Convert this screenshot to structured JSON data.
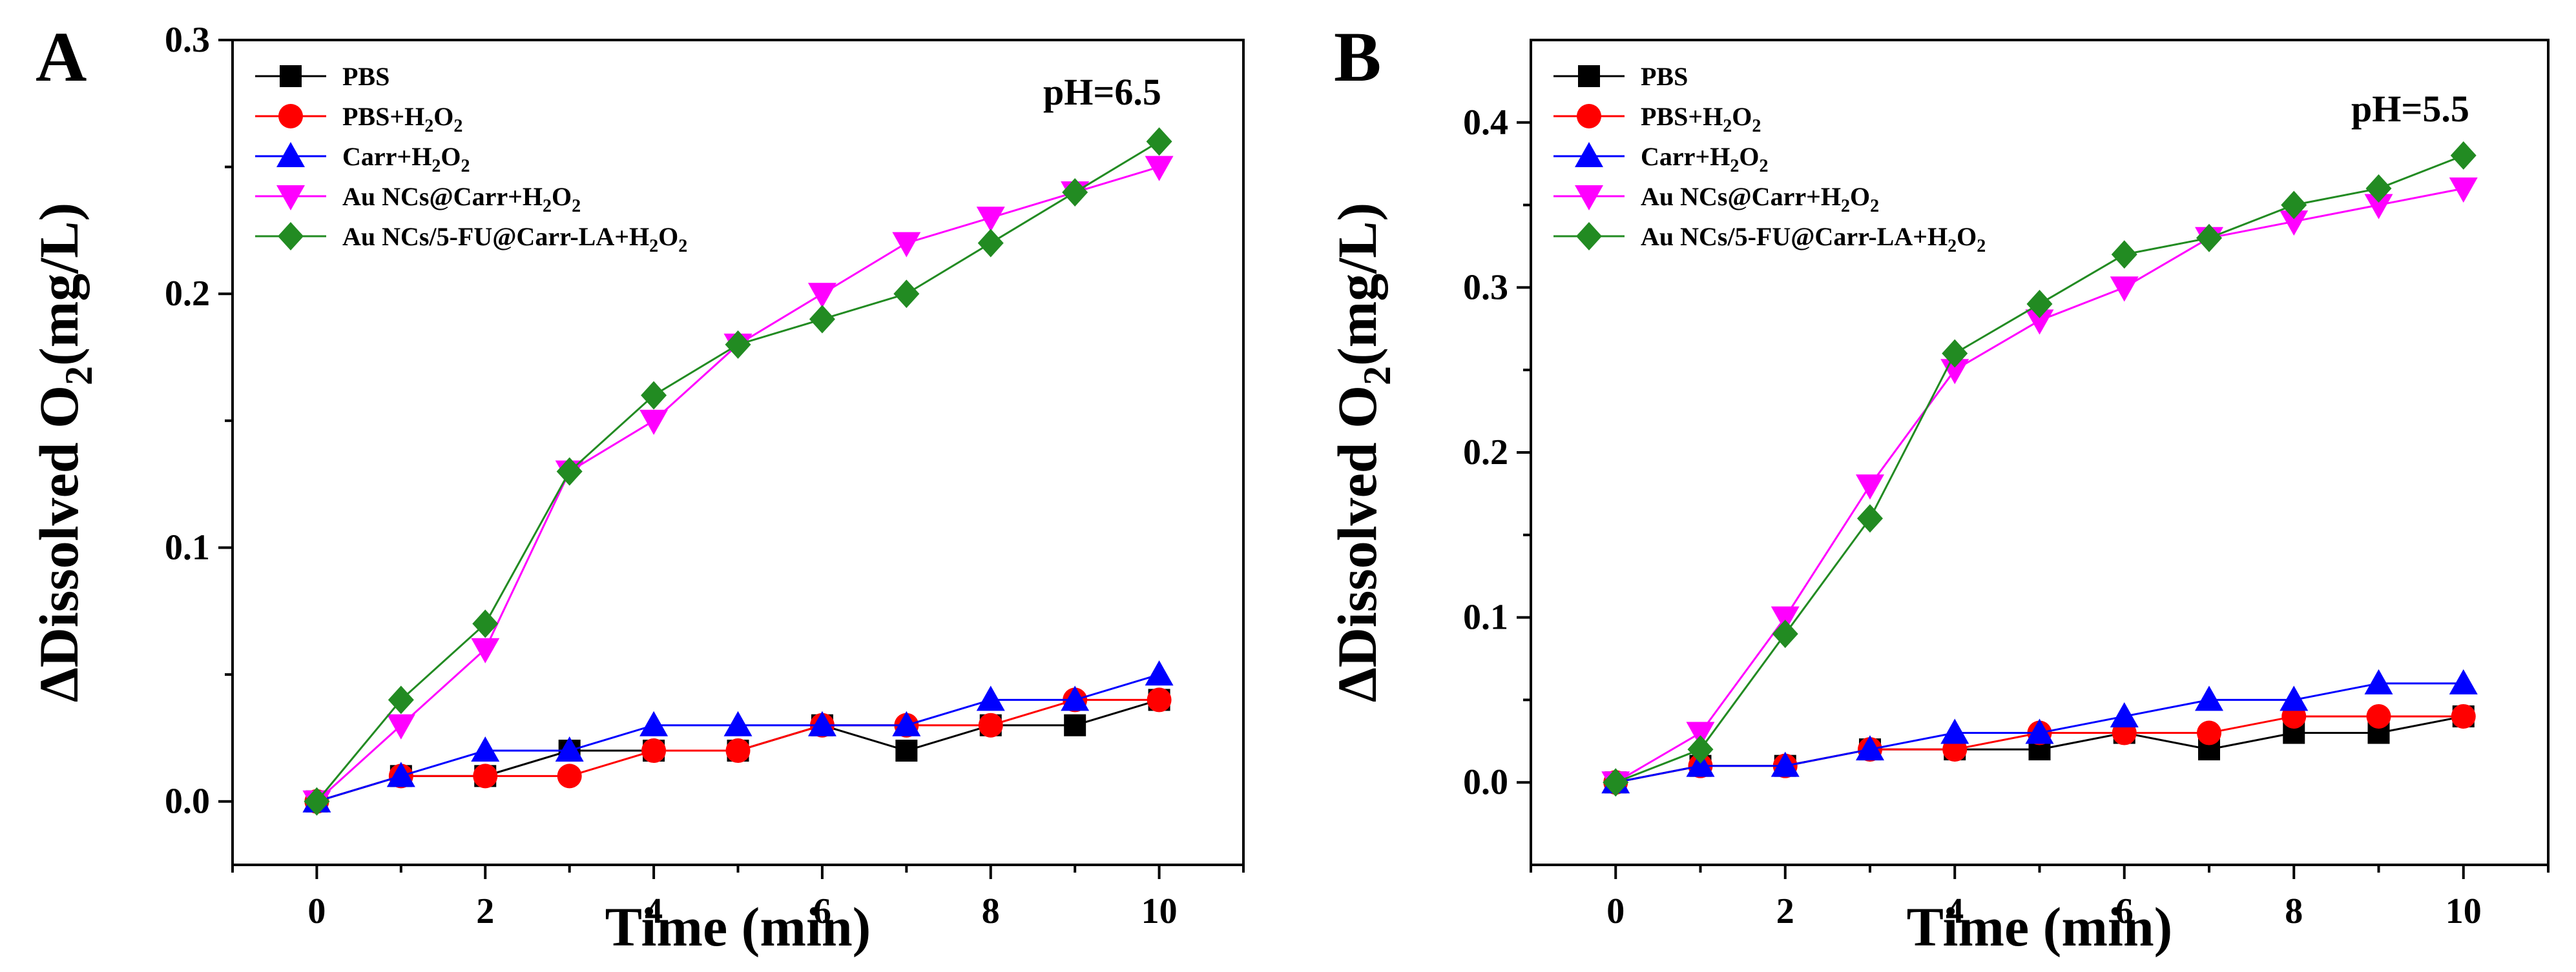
{
  "chart_data": [
    {
      "panel_label": "A",
      "type": "line",
      "annotation": "pH=6.5",
      "xlabel": "Time (min)",
      "ylabel": "ΔDissolved O2(mg/L)",
      "ylabel_parts": {
        "main": "ΔDissolved O",
        "sub": "2",
        "tail": "(mg/L)"
      },
      "xlim": [
        -1,
        11
      ],
      "ylim": [
        -0.025,
        0.3
      ],
      "x_ticks": [
        0,
        2,
        4,
        6,
        8,
        10
      ],
      "x_tick_labels": [
        "0",
        "2",
        "4",
        "6",
        "8",
        "10"
      ],
      "y_ticks": [
        0.0,
        0.1,
        0.2,
        0.3
      ],
      "y_tick_labels": [
        "0.0",
        "0.1",
        "0.2",
        "0.3"
      ],
      "legend_position": "top-left",
      "series": [
        {
          "name": "PBS",
          "label_main": "PBS",
          "color": "#000000",
          "marker": "square",
          "x": [
            0,
            1,
            2,
            3,
            4,
            5,
            6,
            7,
            8,
            9,
            10
          ],
          "values": [
            0,
            0.01,
            0.01,
            0.02,
            0.02,
            0.02,
            0.03,
            0.02,
            0.03,
            0.03,
            0.04
          ]
        },
        {
          "name": "PBS+H2O2",
          "label_main": "PBS+H",
          "label_tail": "O",
          "label_sub": "2",
          "color": "#ff0000",
          "marker": "circle",
          "x": [
            0,
            1,
            2,
            3,
            4,
            5,
            6,
            7,
            8,
            9,
            10
          ],
          "values": [
            0,
            0.01,
            0.01,
            0.01,
            0.02,
            0.02,
            0.03,
            0.03,
            0.03,
            0.04,
            0.04
          ]
        },
        {
          "name": "Carr+H2O2",
          "label_main": "Carr+H",
          "label_tail": "O",
          "label_sub": "2",
          "color": "#0000ff",
          "marker": "triangle-up",
          "x": [
            0,
            1,
            2,
            3,
            4,
            5,
            6,
            7,
            8,
            9,
            10
          ],
          "values": [
            0,
            0.01,
            0.02,
            0.02,
            0.03,
            0.03,
            0.03,
            0.03,
            0.04,
            0.04,
            0.05
          ]
        },
        {
          "name": "Au NCs@Carr+H2O2",
          "label_main": "Au NCs@Carr+H",
          "label_tail": "O",
          "label_sub": "2",
          "color": "#ff00ff",
          "marker": "triangle-down",
          "x": [
            0,
            1,
            2,
            3,
            4,
            5,
            6,
            7,
            8,
            9,
            10
          ],
          "values": [
            0,
            0.03,
            0.06,
            0.13,
            0.15,
            0.18,
            0.2,
            0.22,
            0.23,
            0.24,
            0.25
          ]
        },
        {
          "name": "Au NCs/5-FU@Carr-LA+H2O2",
          "label_main": "Au NCs/5-FU@Carr-LA+H",
          "label_tail": "O",
          "label_sub": "2",
          "color": "#228b22",
          "marker": "diamond",
          "x": [
            0,
            1,
            2,
            3,
            4,
            5,
            6,
            7,
            8,
            9,
            10
          ],
          "values": [
            0,
            0.04,
            0.07,
            0.13,
            0.16,
            0.18,
            0.19,
            0.2,
            0.22,
            0.24,
            0.26
          ]
        }
      ]
    },
    {
      "panel_label": "B",
      "type": "line",
      "annotation": "pH=5.5",
      "xlabel": "Time (min)",
      "ylabel": "ΔDissolved O2(mg/L)",
      "ylabel_parts": {
        "main": "ΔDissolved O",
        "sub": "2",
        "tail": "(mg/L)"
      },
      "xlim": [
        -1,
        11
      ],
      "ylim": [
        -0.05,
        0.45
      ],
      "x_ticks": [
        0,
        2,
        4,
        6,
        8,
        10
      ],
      "x_tick_labels": [
        "0",
        "2",
        "4",
        "6",
        "8",
        "10"
      ],
      "y_ticks": [
        0.0,
        0.1,
        0.2,
        0.3,
        0.4
      ],
      "y_tick_labels": [
        "0.0",
        "0.1",
        "0.2",
        "0.3",
        "0.4"
      ],
      "legend_position": "top-left",
      "series": [
        {
          "name": "PBS",
          "label_main": "PBS",
          "color": "#000000",
          "marker": "square",
          "x": [
            0,
            1,
            2,
            3,
            4,
            5,
            6,
            7,
            8,
            9,
            10
          ],
          "values": [
            0,
            0.01,
            0.01,
            0.02,
            0.02,
            0.02,
            0.03,
            0.02,
            0.03,
            0.03,
            0.04
          ]
        },
        {
          "name": "PBS+H2O2",
          "label_main": "PBS+H",
          "label_tail": "O",
          "label_sub": "2",
          "color": "#ff0000",
          "marker": "circle",
          "x": [
            0,
            1,
            2,
            3,
            4,
            5,
            6,
            7,
            8,
            9,
            10
          ],
          "values": [
            0,
            0.01,
            0.01,
            0.02,
            0.02,
            0.03,
            0.03,
            0.03,
            0.04,
            0.04,
            0.04
          ]
        },
        {
          "name": "Carr+H2O2",
          "label_main": "Carr+H",
          "label_tail": "O",
          "label_sub": "2",
          "color": "#0000ff",
          "marker": "triangle-up",
          "x": [
            0,
            1,
            2,
            3,
            4,
            5,
            6,
            7,
            8,
            9,
            10
          ],
          "values": [
            0,
            0.01,
            0.01,
            0.02,
            0.03,
            0.03,
            0.04,
            0.05,
            0.05,
            0.06,
            0.06
          ]
        },
        {
          "name": "Au NCs@Carr+H2O2",
          "label_main": "Au NCs@Carr+H",
          "label_tail": "O",
          "label_sub": "2",
          "color": "#ff00ff",
          "marker": "triangle-down",
          "x": [
            0,
            1,
            2,
            3,
            4,
            5,
            6,
            7,
            8,
            9,
            10
          ],
          "values": [
            0,
            0.03,
            0.1,
            0.18,
            0.25,
            0.28,
            0.3,
            0.33,
            0.34,
            0.35,
            0.36
          ]
        },
        {
          "name": "Au NCs/5-FU@Carr-LA+H2O2",
          "label_main": "Au NCs/5-FU@Carr-LA+H",
          "label_tail": "O",
          "label_sub": "2",
          "color": "#228b22",
          "marker": "diamond",
          "x": [
            0,
            1,
            2,
            3,
            4,
            5,
            6,
            7,
            8,
            9,
            10
          ],
          "values": [
            0,
            0.02,
            0.09,
            0.16,
            0.26,
            0.29,
            0.32,
            0.33,
            0.35,
            0.36,
            0.38
          ]
        }
      ]
    }
  ]
}
